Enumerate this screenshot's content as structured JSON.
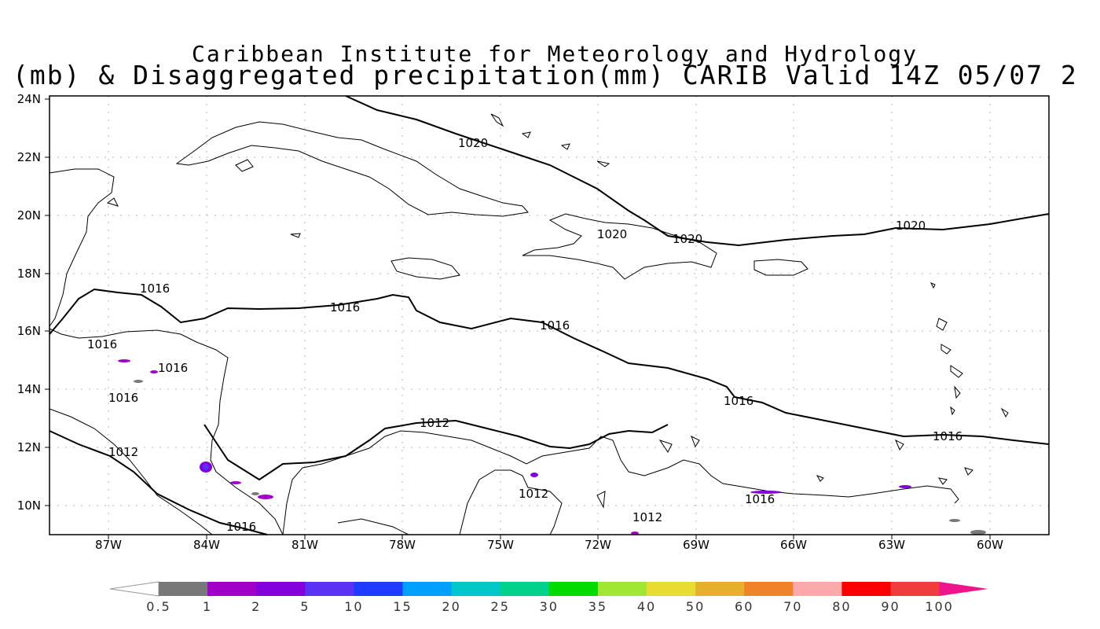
{
  "title": {
    "line1": "Caribbean Institute for Meteorology and Hydrology",
    "line2": "(mb) & Disaggregated precipitation(mm) CARIB Valid 14Z 05/07 2"
  },
  "map": {
    "lat_range": [
      9,
      24
    ],
    "lon_range": [
      -88,
      -58
    ],
    "lat_ticks": [
      "24N",
      "22N",
      "20N",
      "18N",
      "16N",
      "14N",
      "12N",
      "10N"
    ],
    "lon_ticks": [
      "87W",
      "84W",
      "81W",
      "78W",
      "75W",
      "72W",
      "69W",
      "66W",
      "63W",
      "60W"
    ],
    "isobar_labels": [
      "1020",
      "1020",
      "1020",
      "1020",
      "1016",
      "1016",
      "1016",
      "1016",
      "1016",
      "1016",
      "1016",
      "1016",
      "1012",
      "1012",
      "1012",
      "1012"
    ]
  },
  "legend": {
    "labels": [
      "0.5",
      "1",
      "2",
      "5",
      "10",
      "15",
      "20",
      "25",
      "30",
      "35",
      "40",
      "50",
      "60",
      "70",
      "80",
      "90",
      "100"
    ],
    "colors": [
      "#ffffff",
      "#787878",
      "#a000c8",
      "#8200dc",
      "#5a32f5",
      "#1e3cff",
      "#00a0ff",
      "#00c8c8",
      "#00d28c",
      "#00dc00",
      "#a0e632",
      "#e6dc32",
      "#e6af2d",
      "#f08228",
      "#faaaaa",
      "#fa0000",
      "#f03c3c",
      "#f0148c"
    ]
  }
}
